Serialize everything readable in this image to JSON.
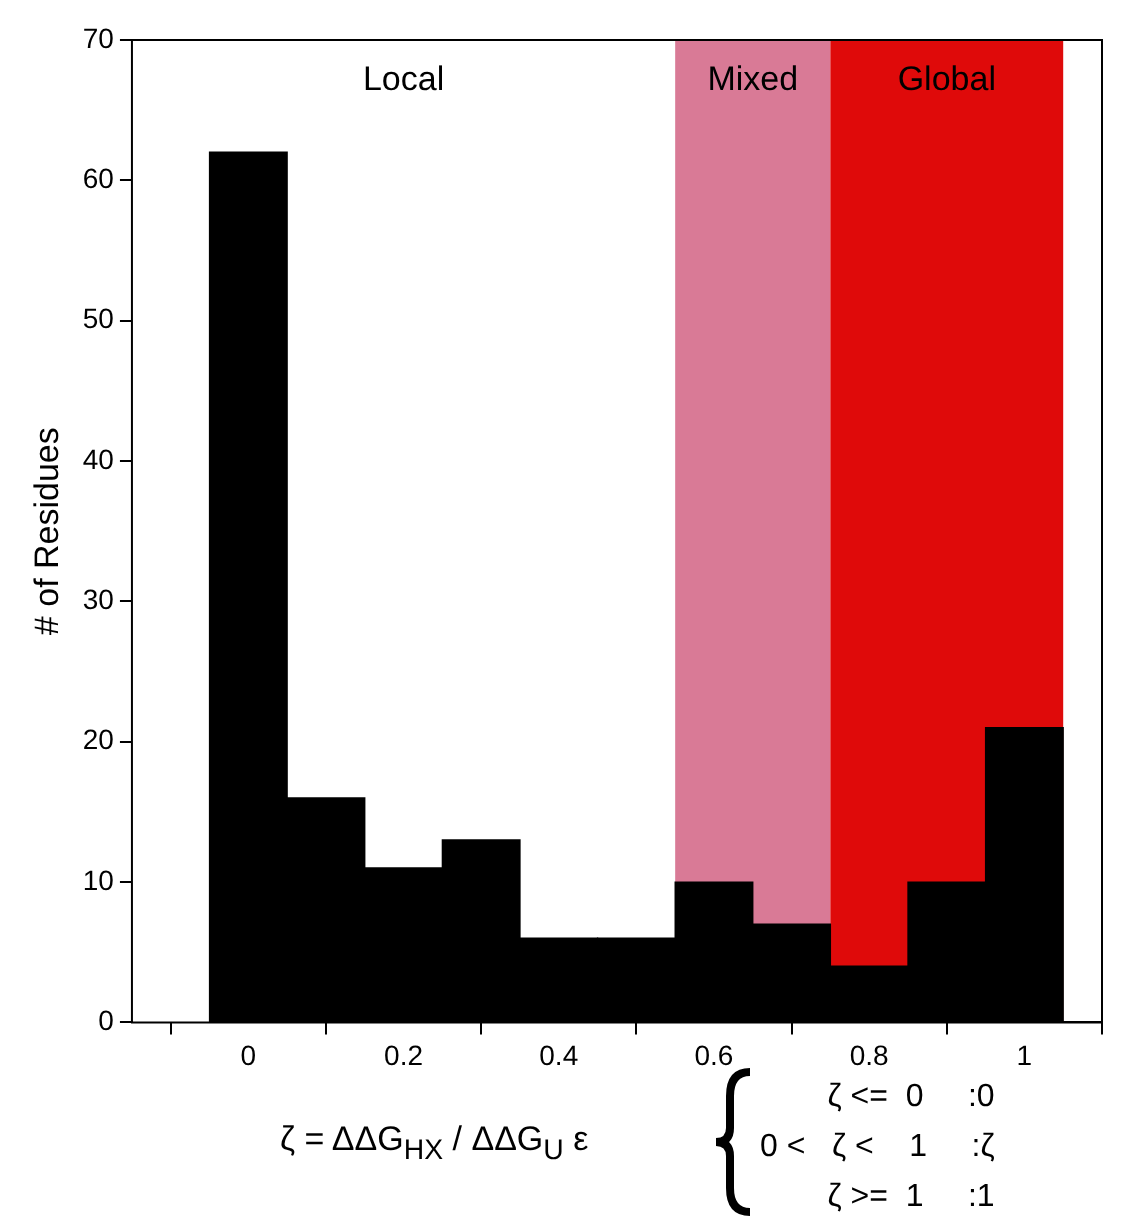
{
  "chart_data": {
    "type": "histogram",
    "ylabel": "# of Residues",
    "xlabel": "ζ = ΔΔG$_{HX}$ /  ΔΔG$_{U}$  ε",
    "bins": [
      -0.05,
      0.05,
      0.15,
      0.25,
      0.35,
      0.45,
      0.55,
      0.65,
      0.75,
      0.85,
      0.95,
      1.05
    ],
    "values": [
      62,
      16,
      11,
      13,
      6,
      6,
      10,
      7,
      4,
      10,
      21
    ],
    "color": "#000000",
    "xlim": [
      -0.15,
      1.1
    ],
    "xticks": [
      0,
      0.2,
      0.4,
      0.6,
      0.8,
      1
    ],
    "ylim": [
      0,
      70
    ],
    "yticks": [
      0,
      10,
      20,
      30,
      40,
      50,
      60,
      70
    ],
    "grid": false,
    "legend": false,
    "bands": [
      {
        "axis": "x",
        "from": -0.15,
        "to": 0.55,
        "label": "Local",
        "color": "#ffffff"
      },
      {
        "axis": "x",
        "from": 0.55,
        "to": 0.75,
        "label": "Mixed",
        "color": "#d97a96"
      },
      {
        "axis": "x",
        "from": 0.75,
        "to": 1.05,
        "label": "Global",
        "color": "#df0a0a"
      }
    ],
    "annotations": [
      "ζ <=  0     :0",
      "0 <   ζ <    1     :ζ",
      "ζ >=  1     :1"
    ]
  }
}
